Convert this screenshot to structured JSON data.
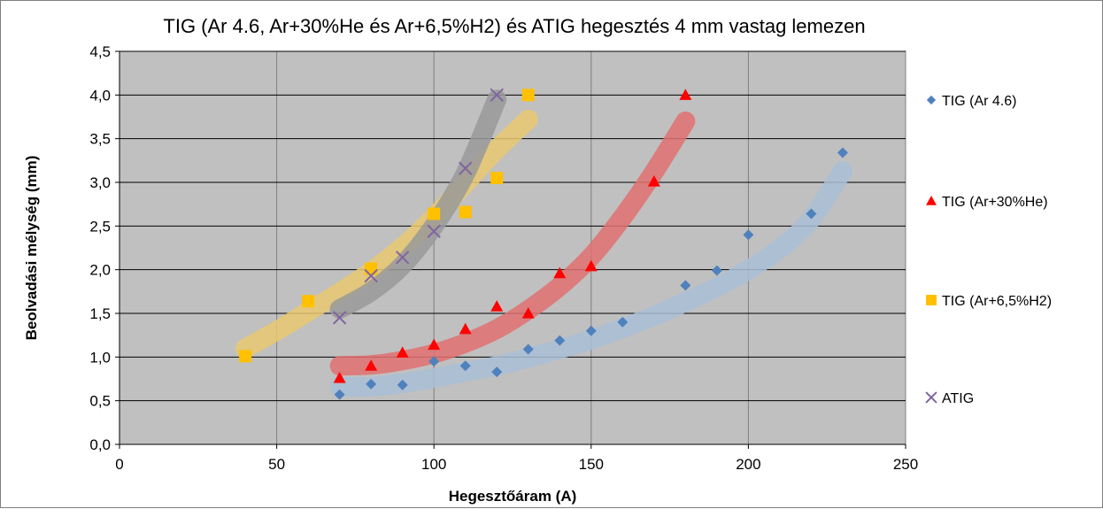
{
  "chart_data": {
    "type": "scatter",
    "title": "TIG  (Ar 4.6, Ar+30%He és Ar+6,5%H2) és ATIG  hegesztés 4 mm vastag lemezen",
    "xlabel": "Hegesztőáram (A)",
    "ylabel": "Beolvadási mélység (mm)",
    "xlim": [
      0,
      250
    ],
    "ylim": [
      0,
      4.5
    ],
    "x_ticks": [
      0,
      50,
      100,
      150,
      200,
      250
    ],
    "x_tick_labels": [
      "0",
      "50",
      "100",
      "150",
      "200",
      "250"
    ],
    "y_ticks": [
      0,
      0.5,
      1,
      1.5,
      2,
      2.5,
      3,
      3.5,
      4,
      4.5
    ],
    "y_tick_labels": [
      "0,0",
      "0,5",
      "1,0",
      "1,5",
      "2,0",
      "2,5",
      "3,0",
      "3,5",
      "4,0",
      "4,5"
    ],
    "grid": true,
    "plot_background": "#c0c0c0",
    "legend_position": "right",
    "series": [
      {
        "name": "TIG (Ar 4.6)",
        "marker": "diamond",
        "color": "#4f81bd",
        "trend_color": "#a9bed6",
        "x": [
          70,
          80,
          90,
          100,
          110,
          120,
          130,
          140,
          150,
          160,
          180,
          190,
          200,
          220,
          230
        ],
        "y": [
          0.57,
          0.69,
          0.68,
          0.95,
          0.9,
          0.83,
          1.09,
          1.19,
          1.3,
          1.4,
          1.82,
          1.99,
          2.4,
          2.64,
          3.34
        ],
        "trend_x": [
          70,
          80,
          90,
          100,
          110,
          120,
          130,
          140,
          150,
          160,
          170,
          180,
          190,
          200,
          210,
          220,
          230
        ],
        "trend_y": [
          0.66,
          0.66,
          0.7,
          0.76,
          0.83,
          0.9,
          0.99,
          1.09,
          1.2,
          1.33,
          1.47,
          1.63,
          1.8,
          2.0,
          2.24,
          2.58,
          3.13
        ]
      },
      {
        "name": "TIG (Ar+30%He)",
        "marker": "triangle",
        "color": "#ff0000",
        "trend_color": "#e07070",
        "x": [
          70,
          80,
          90,
          100,
          110,
          120,
          130,
          140,
          150,
          170,
          180
        ],
        "y": [
          0.76,
          0.9,
          1.05,
          1.14,
          1.32,
          1.58,
          1.5,
          1.96,
          2.04,
          3.01,
          4.0
        ],
        "trend_x": [
          70,
          80,
          90,
          100,
          110,
          120,
          130,
          140,
          150,
          160,
          170,
          180
        ],
        "trend_y": [
          0.9,
          0.91,
          0.96,
          1.04,
          1.16,
          1.32,
          1.54,
          1.81,
          2.15,
          2.6,
          3.12,
          3.7
        ]
      },
      {
        "name": "TIG (Ar+6,5%H2)",
        "marker": "square",
        "color": "#ffc000",
        "trend_color": "#e8c870",
        "x": [
          40,
          60,
          80,
          100,
          110,
          120,
          130
        ],
        "y": [
          1.01,
          1.64,
          2.01,
          2.64,
          2.66,
          3.05,
          4.0
        ],
        "trend_x": [
          40,
          50,
          60,
          70,
          80,
          90,
          100,
          110,
          120,
          130
        ],
        "trend_y": [
          1.1,
          1.3,
          1.52,
          1.74,
          1.98,
          2.26,
          2.6,
          2.99,
          3.38,
          3.72
        ]
      },
      {
        "name": "ATIG",
        "marker": "x",
        "color": "#8064a2",
        "trend_color": "#999999",
        "x": [
          70,
          80,
          90,
          100,
          110,
          120
        ],
        "y": [
          1.45,
          1.93,
          2.14,
          2.44,
          3.16,
          4.0
        ],
        "trend_x": [
          70,
          80,
          90,
          100,
          110,
          120
        ],
        "trend_y": [
          1.55,
          1.75,
          2.05,
          2.5,
          3.1,
          3.95
        ]
      }
    ]
  }
}
